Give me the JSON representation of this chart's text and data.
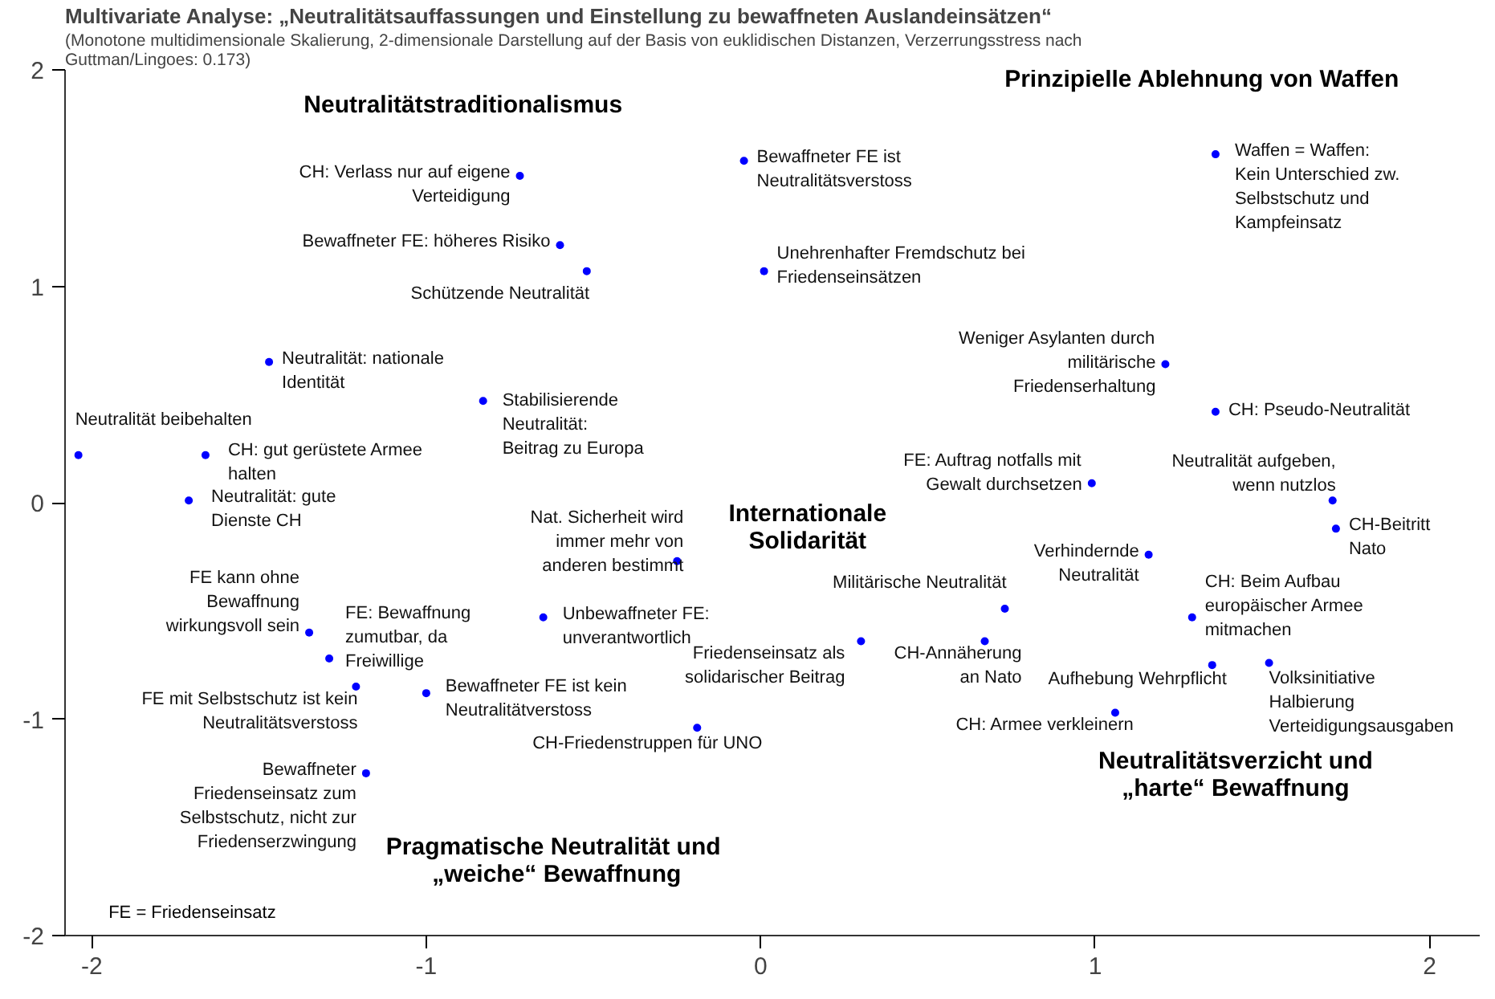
{
  "chart_data": {
    "type": "scatter",
    "title": "Multivariate Analyse: „Neutralitätsauffassungen und Einstellung zu bewaffneten Auslandeinsätzen“",
    "subtitle": "(Monotone multidimensionale Skalierung, 2-dimensionale Darstellung auf der Basis von euklidischen Distanzen, Verzerrungsstress nach\nGuttman/Lingoes: 0.173)",
    "x": [
      -0.72,
      -0.6,
      -0.52,
      -1.47,
      -0.83,
      -2.04,
      -1.66,
      -1.71,
      -0.05,
      0.01,
      -0.25,
      1.36,
      1.21,
      1.36,
      0.99,
      1.71,
      1.72,
      1.16,
      0.73,
      1.29,
      0.67,
      0.3,
      1.35,
      1.52,
      1.06,
      -1.35,
      -1.29,
      -1.21,
      -1.0,
      -0.65,
      -0.19,
      -1.18
    ],
    "values": [
      1.51,
      1.19,
      1.07,
      0.65,
      0.47,
      0.22,
      0.22,
      0.01,
      1.58,
      1.07,
      -0.27,
      1.61,
      0.64,
      0.42,
      0.09,
      0.01,
      -0.12,
      -0.24,
      -0.49,
      -0.53,
      -0.64,
      -0.64,
      -0.75,
      -0.74,
      -0.97,
      -0.6,
      -0.72,
      -0.85,
      -0.88,
      -0.53,
      -1.04,
      -1.25
    ],
    "color": "#0000ff",
    "marker": "circle",
    "xlim": [
      -2.08,
      2.15
    ],
    "ylim": [
      -2,
      2
    ],
    "xticks": [
      -2,
      -1,
      0,
      1,
      2
    ],
    "yticks": [
      -2,
      -1,
      0,
      1,
      2
    ],
    "grid": false,
    "annotations": [
      "Neutralitätstraditionalismus",
      "Prinzipielle Ablehnung von Waffen",
      "Internationale\nSolidarität",
      "Neutralitätsverzicht und\n„harte“ Bewaffnung",
      "Pragmatische  Neutralität und\n„weiche“ Bewaffnung",
      "FE = Friedenseinsatz",
      {
        "text": "CH: Verlass nur auf eigene\nVerteidigung",
        "x": -0.72,
        "y": 1.51
      },
      {
        "text": "Bewaffneter FE: höheres Risiko",
        "x": -0.6,
        "y": 1.19
      },
      {
        "text": "Schützende Neutralität",
        "x": -0.52,
        "y": 1.07
      },
      {
        "text": "Neutralität: nationale\nIdentität",
        "x": -1.47,
        "y": 0.65
      },
      {
        "text": "Stabilisierende\nNeutralität:\nBeitrag zu Europa",
        "x": -0.83,
        "y": 0.47
      },
      {
        "text": "Neutralität beibehalten",
        "x": -2.04,
        "y": 0.22
      },
      {
        "text": "CH: gut gerüstete Armee\nhalten",
        "x": -1.66,
        "y": 0.22
      },
      {
        "text": "Neutralität: gute\nDienste CH",
        "x": -1.71,
        "y": 0.01
      },
      {
        "text": "Bewaffneter FE ist\nNeutralitätsverstoss",
        "x": -0.05,
        "y": 1.58
      },
      {
        "text": "Unehrenhafter Fremdschutz bei\nFriedenseinsätzen",
        "x": 0.01,
        "y": 1.07
      },
      {
        "text": "Nat. Sicherheit wird\nimmer mehr von\nanderen bestimmt",
        "x": -0.25,
        "y": -0.27
      },
      {
        "text": "Waffen = Waffen:\nKein Unterschied zw.\nSelbstschutz und\nKampfeinsatz",
        "x": 1.36,
        "y": 1.61
      },
      {
        "text": "Weniger Asylanten durch\nmilitärische\nFriedenserhaltung",
        "x": 1.21,
        "y": 0.64
      },
      {
        "text": "CH: Pseudo-Neutralität",
        "x": 1.36,
        "y": 0.42
      },
      {
        "text": "FE: Auftrag notfalls mit\nGewalt durchsetzen",
        "x": 0.99,
        "y": 0.09
      },
      {
        "text": "Neutralität aufgeben,\nwenn nutzlos",
        "x": 1.71,
        "y": 0.01
      },
      {
        "text": "CH-Beitritt\nNato",
        "x": 1.72,
        "y": -0.12
      },
      {
        "text": "Verhindernde\nNeutralität",
        "x": 1.16,
        "y": -0.24
      },
      {
        "text": "Militärische Neutralität",
        "x": 0.73,
        "y": -0.49
      },
      {
        "text": "CH: Beim Aufbau\neuropäischer Armee\nmitmachen",
        "x": 1.29,
        "y": -0.53
      },
      {
        "text": "CH-Annäherung\nan Nato",
        "x": 0.67,
        "y": -0.64
      },
      {
        "text": "Friedenseinsatz als\nsolidarischer Beitrag",
        "x": 0.3,
        "y": -0.64
      },
      {
        "text": "Aufhebung Wehrpflicht",
        "x": 1.35,
        "y": -0.75
      },
      {
        "text": "Volksinitiative\nHalbierung\nVerteidigungsausgaben",
        "x": 1.52,
        "y": -0.74
      },
      {
        "text": "CH: Armee verkleinern",
        "x": 1.06,
        "y": -0.97
      },
      {
        "text": "FE kann ohne\nBewaffnung\nwirkungsvoll sein",
        "x": -1.35,
        "y": -0.6
      },
      {
        "text": "FE: Bewaffnung\nzumutbar, da\nFreiwillige",
        "x": -1.29,
        "y": -0.72
      },
      {
        "text": "FE mit Selbstschutz ist kein\nNeutralitätsverstoss",
        "x": -1.21,
        "y": -0.85
      },
      {
        "text": "Bewaffneter FE ist kein\nNeutralitätverstoss",
        "x": -1.0,
        "y": -0.88
      },
      {
        "text": "Unbewaffneter FE:\nunverantwortlich",
        "x": -0.65,
        "y": -0.53
      },
      {
        "text": "CH-Friedenstruppen für UNO",
        "x": -0.19,
        "y": -1.04
      },
      {
        "text": "Bewaffneter\nFriedenseinsatz zum\nSelbstschutz, nicht zur\nFriedenserzwingung",
        "x": -1.18,
        "y": -1.25
      }
    ]
  }
}
